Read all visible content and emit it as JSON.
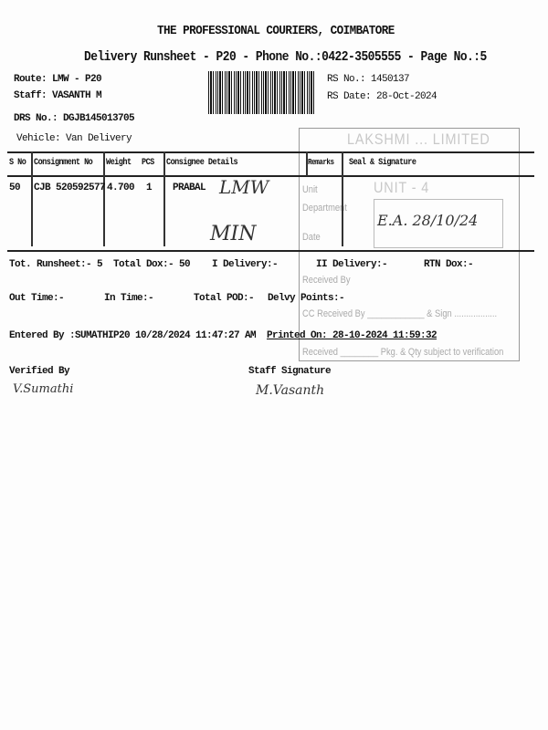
{
  "header": {
    "title": "THE PROFESSIONAL COURIERS, COIMBATORE",
    "subtitle": "Delivery Runsheet - P20 - Phone No.:0422-3505555 - Page No.:5"
  },
  "meta": {
    "route": "Route: LMW - P20",
    "staff": "Staff: VASANTH M",
    "drs_no": "DRS No.: DGJB145013705",
    "vehicle": "Vehicle: Van Delivery",
    "rs_no": "RS No.: 1450137",
    "rs_date": "RS Date: 28-Oct-2024"
  },
  "table": {
    "headers": [
      "S No",
      "Consignment No",
      "Weight",
      "PCS",
      "Consignee Details",
      "Remarks",
      "Seal & Signature"
    ],
    "rows": [
      {
        "sno": "50",
        "consignment": "CJB 520592577",
        "weight": "4.700",
        "pcs": "1",
        "consignee": "PRABAL"
      }
    ]
  },
  "summary": {
    "tot_runsheet": "Tot. Runsheet:- 5",
    "total_dox": "Total Dox:-",
    "total_dox_value": "50",
    "i_delivery": "I Delivery:-",
    "ii_delivery": "II Delivery:-",
    "rtn_dox": "RTN Dox:-",
    "out_time": "Out Time:-",
    "in_time": "In Time:-",
    "total_pod": "Total POD:-",
    "delvy_points": "Delvy Points:-",
    "entered_by": "Entered By :SUMATHIP20 10/28/2024 11:47:27 AM",
    "printed_on": "Printed On: 28-10-2024 11:59:32"
  },
  "stamp": {
    "company": "LAKSHMI ... LIMITED",
    "unit": "UNIT - 4",
    "unit_label": "Unit",
    "department": "Department",
    "date": "Date",
    "received_by": "Received By",
    "cc_received_by": "CC Received By ____________ & Sign ..................",
    "received_pkg": "Received ________ Pkg. & Qty subject to verification"
  },
  "footer": {
    "verified_by": "Verified By",
    "staff_signature": "Staff Signature"
  },
  "handwriting": {
    "consignee_note_1": "LMW",
    "consignee_note_2": "MIN",
    "receiver_signature": "E.A. 28/10/24",
    "verifier_signature": "V.Sumathi",
    "staff_sign": "M.Vasanth"
  }
}
